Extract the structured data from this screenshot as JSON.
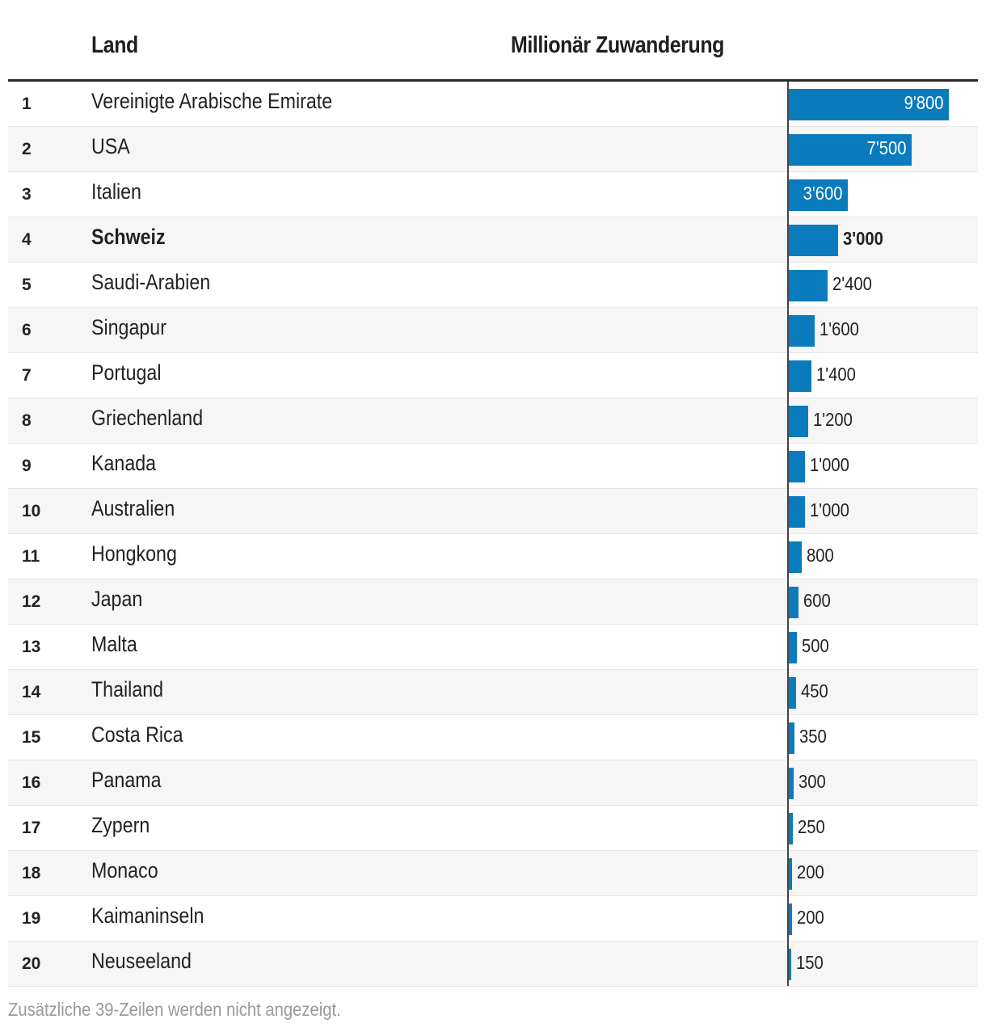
{
  "header": {
    "col_country": "Land",
    "col_value": "Millionär Zuwanderung"
  },
  "footer": {
    "note": "Zusätzliche 39-Zeilen werden nicht angezeigt."
  },
  "colors": {
    "bar": "#0a7bbd",
    "rule": "#2a2a2a"
  },
  "chart_data": {
    "type": "bar",
    "orientation": "horizontal",
    "xlim": [
      0,
      10000
    ],
    "highlight": "Schweiz",
    "rows": [
      {
        "rank": "1",
        "country": "Vereinigte Arabische Emirate",
        "value": 9800,
        "label": "9'800"
      },
      {
        "rank": "2",
        "country": "USA",
        "value": 7500,
        "label": "7'500"
      },
      {
        "rank": "3",
        "country": "Italien",
        "value": 3600,
        "label": "3'600"
      },
      {
        "rank": "4",
        "country": "Schweiz",
        "value": 3000,
        "label": "3'000"
      },
      {
        "rank": "5",
        "country": "Saudi-Arabien",
        "value": 2400,
        "label": "2'400"
      },
      {
        "rank": "6",
        "country": "Singapur",
        "value": 1600,
        "label": "1'600"
      },
      {
        "rank": "7",
        "country": "Portugal",
        "value": 1400,
        "label": "1'400"
      },
      {
        "rank": "8",
        "country": "Griechenland",
        "value": 1200,
        "label": "1'200"
      },
      {
        "rank": "9",
        "country": "Kanada",
        "value": 1000,
        "label": "1'000"
      },
      {
        "rank": "10",
        "country": "Australien",
        "value": 1000,
        "label": "1'000"
      },
      {
        "rank": "11",
        "country": "Hongkong",
        "value": 800,
        "label": "800"
      },
      {
        "rank": "12",
        "country": "Japan",
        "value": 600,
        "label": "600"
      },
      {
        "rank": "13",
        "country": "Malta",
        "value": 500,
        "label": "500"
      },
      {
        "rank": "14",
        "country": "Thailand",
        "value": 450,
        "label": "450"
      },
      {
        "rank": "15",
        "country": "Costa Rica",
        "value": 350,
        "label": "350"
      },
      {
        "rank": "16",
        "country": "Panama",
        "value": 300,
        "label": "300"
      },
      {
        "rank": "17",
        "country": "Zypern",
        "value": 250,
        "label": "250"
      },
      {
        "rank": "18",
        "country": "Monaco",
        "value": 200,
        "label": "200"
      },
      {
        "rank": "19",
        "country": "Kaimaninseln",
        "value": 200,
        "label": "200"
      },
      {
        "rank": "20",
        "country": "Neuseeland",
        "value": 150,
        "label": "150"
      }
    ]
  }
}
